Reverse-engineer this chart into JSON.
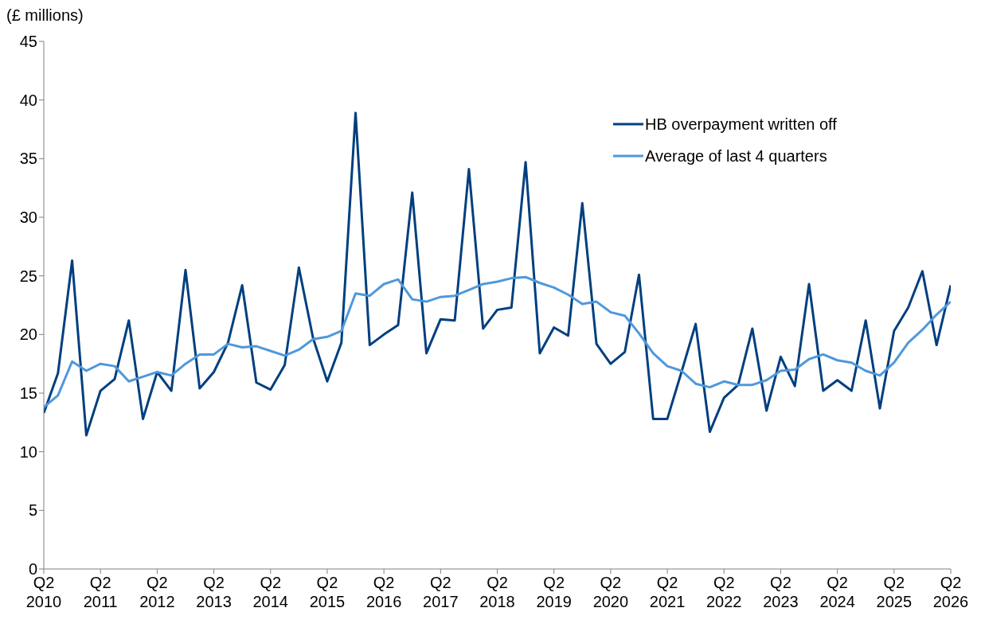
{
  "chart_data": {
    "type": "line",
    "ylabel": "(£ millions)",
    "categories": [
      "Q2 2010",
      null,
      null,
      null,
      "Q2 2011",
      null,
      null,
      null,
      "Q2 2012",
      null,
      null,
      null,
      "Q2 2013",
      null,
      null,
      null,
      "Q2 2014",
      null,
      null,
      null,
      "Q2 2015",
      null,
      null,
      null,
      "Q2 2016",
      null,
      null,
      null,
      "Q2 2017",
      null,
      null,
      null,
      "Q2 2018",
      null,
      null,
      null,
      "Q2 2019",
      null,
      null,
      null,
      "Q2 2020",
      null,
      null,
      null,
      "Q2 2021",
      null,
      null,
      null,
      "Q2 2022",
      null,
      null,
      null,
      "Q2 2023",
      null,
      null,
      null,
      "Q2 2024",
      null,
      null,
      null,
      "Q2 2025",
      null,
      null,
      null,
      "Q2 2026"
    ],
    "series": [
      {
        "name": "HB overpayment written off",
        "color": "#003f7f",
        "values": [
          13.3,
          16.7,
          26.3,
          11.4,
          15.2,
          16.2,
          21.2,
          12.8,
          16.8,
          15.2,
          25.5,
          15.4,
          16.8,
          19.3,
          24.2,
          15.9,
          15.3,
          17.4,
          25.7,
          19.7,
          16.0,
          19.3,
          38.9,
          19.1,
          20.0,
          20.8,
          32.1,
          18.4,
          21.3,
          21.2,
          34.1,
          20.5,
          22.1,
          22.3,
          34.7,
          18.4,
          20.6,
          19.9,
          31.2,
          19.2,
          17.5,
          18.5,
          25.1,
          12.8,
          12.8,
          16.8,
          20.9,
          11.7,
          14.6,
          15.7,
          20.5,
          13.5,
          18.1,
          15.6,
          24.3,
          15.2,
          16.1,
          15.2,
          21.2,
          13.7,
          20.3,
          22.3,
          25.4,
          19.1,
          24.2
        ]
      },
      {
        "name": "Average of last 4 quarters",
        "color": "#4f98dc",
        "values": [
          13.8,
          14.8,
          17.7,
          16.9,
          17.5,
          17.3,
          16.0,
          16.4,
          16.8,
          16.5,
          17.5,
          18.3,
          18.3,
          19.2,
          18.9,
          19.0,
          18.6,
          18.2,
          18.7,
          19.6,
          19.8,
          20.3,
          23.5,
          23.3,
          24.3,
          24.7,
          23.0,
          22.8,
          23.2,
          23.3,
          23.8,
          24.3,
          24.5,
          24.8,
          24.9,
          24.4,
          24.0,
          23.4,
          22.6,
          22.8,
          21.9,
          21.6,
          20.1,
          18.4,
          17.3,
          16.9,
          15.8,
          15.5,
          16.0,
          15.7,
          15.7,
          16.1,
          16.9,
          17.0,
          17.9,
          18.3,
          17.8,
          17.6,
          16.9,
          16.5,
          17.6,
          19.3,
          20.4,
          21.7,
          22.8
        ]
      }
    ],
    "ylim": [
      0,
      45
    ],
    "yticks": [
      0,
      5,
      10,
      15,
      20,
      25,
      30,
      35,
      40,
      45
    ],
    "grid": false,
    "legend": "top right",
    "marker": "none",
    "line_style": "solid"
  }
}
